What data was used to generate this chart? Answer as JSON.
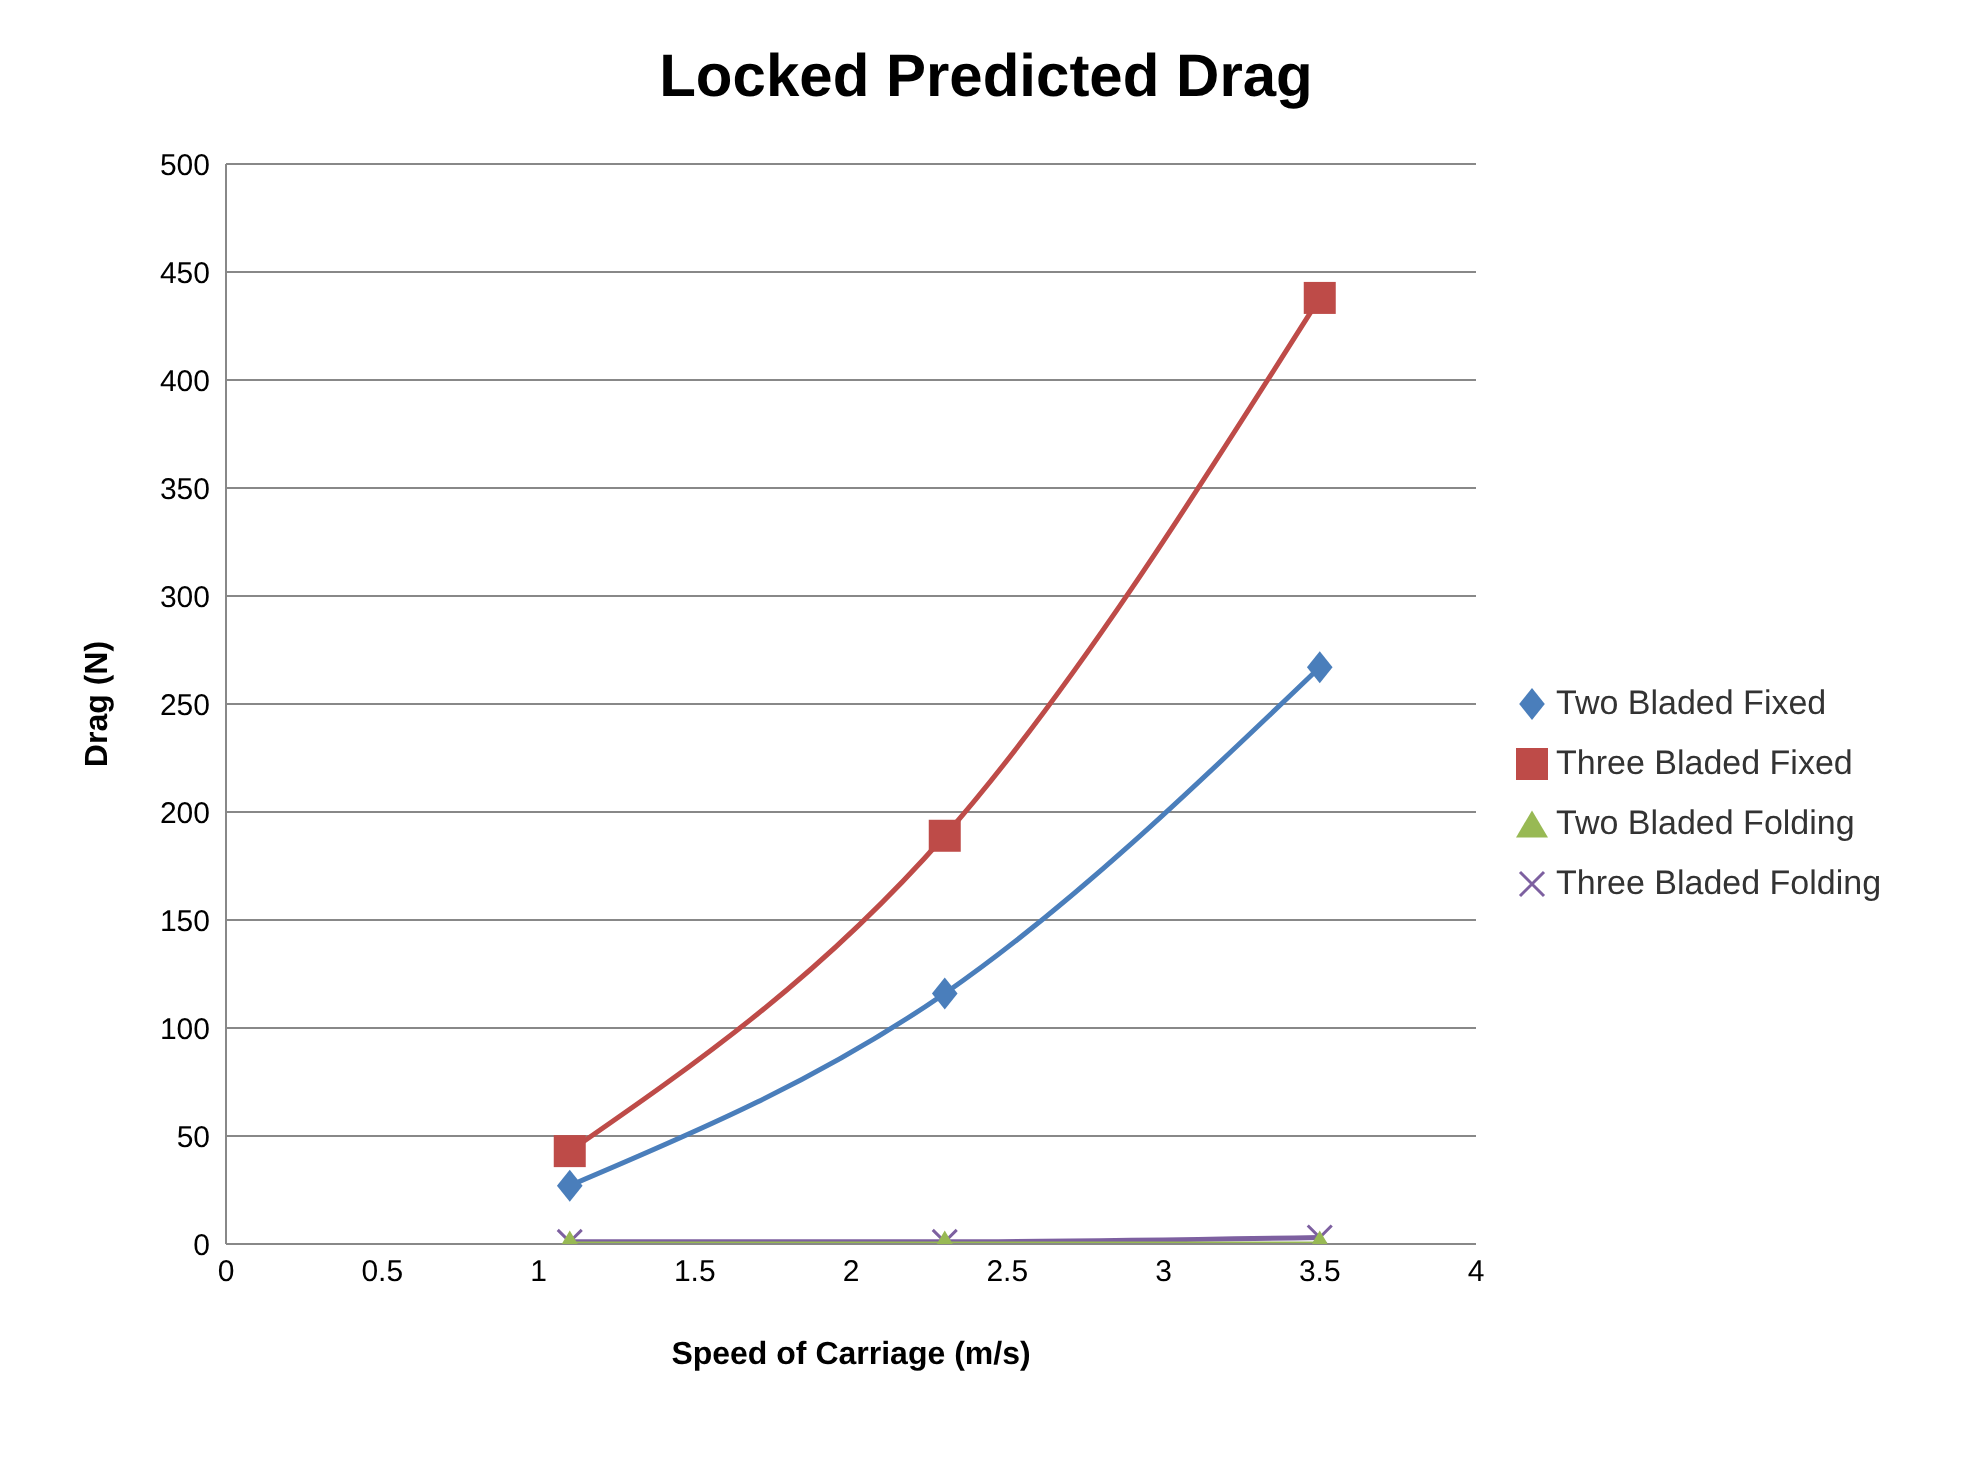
{
  "chart_data": {
    "type": "line",
    "title": "Locked Predicted Drag",
    "xlabel": "Speed of Carriage (m/s)",
    "ylabel": "Drag (N)",
    "x": [
      1.1,
      2.3,
      3.5
    ],
    "series": [
      {
        "name": "Two Bladed Fixed",
        "color": "#4a7ebb",
        "marker": "diamond",
        "values": [
          27,
          116,
          267
        ]
      },
      {
        "name": "Three Bladed Fixed",
        "color": "#be4b48",
        "marker": "square",
        "values": [
          43,
          189,
          438
        ]
      },
      {
        "name": "Two Bladed Folding",
        "color": "#98b954",
        "marker": "triangle",
        "values": [
          0,
          0,
          0
        ]
      },
      {
        "name": "Three Bladed Folding",
        "color": "#7d60a0",
        "marker": "cross",
        "values": [
          1,
          1,
          3
        ]
      }
    ],
    "xlim": [
      0,
      4
    ],
    "xticks": [
      0,
      0.5,
      1,
      1.5,
      2,
      2.5,
      3,
      3.5,
      4
    ],
    "ylim": [
      0,
      500
    ],
    "yticks": [
      0,
      50,
      100,
      150,
      200,
      250,
      300,
      350,
      400,
      450,
      500
    ],
    "grid": "y",
    "legend": "right",
    "line_style": "solid"
  }
}
